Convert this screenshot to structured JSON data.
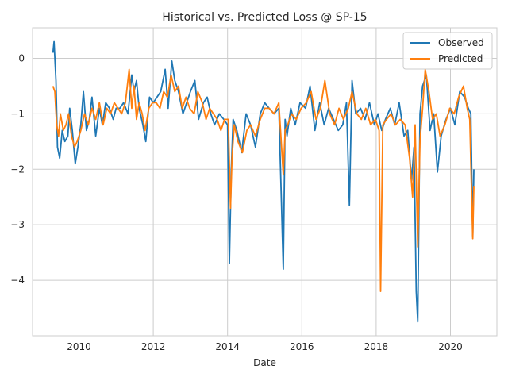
{
  "chart_data": {
    "type": "line",
    "title": "Historical vs. Predicted Loss @ SP-15",
    "xlabel": "Date",
    "ylabel": "",
    "xlim": [
      2008.75,
      2021.25
    ],
    "ylim": [
      -5.0,
      0.55
    ],
    "x_ticks": [
      2010,
      2012,
      2014,
      2016,
      2018,
      2020
    ],
    "x_tick_labels": [
      "2010",
      "2012",
      "2014",
      "2016",
      "2018",
      "2020"
    ],
    "y_ticks": [
      0,
      -1,
      -2,
      -3,
      -4
    ],
    "y_tick_labels": [
      "0",
      "−1",
      "−2",
      "−3",
      "−4"
    ],
    "grid": true,
    "legend_position": "top-right",
    "colors": {
      "Observed": "#1f77b4",
      "Predicted": "#ff7f0e"
    },
    "series": [
      {
        "name": "Observed",
        "x": [
          2009.3,
          2009.33,
          2009.38,
          2009.42,
          2009.48,
          2009.55,
          2009.62,
          2009.7,
          2009.75,
          2009.82,
          2009.9,
          2009.97,
          2010.05,
          2010.12,
          2010.2,
          2010.28,
          2010.35,
          2010.45,
          2010.55,
          2010.63,
          2010.72,
          2010.82,
          2010.92,
          2011.0,
          2011.1,
          2011.2,
          2011.32,
          2011.42,
          2011.48,
          2011.55,
          2011.62,
          2011.72,
          2011.8,
          2011.9,
          2012.0,
          2012.1,
          2012.2,
          2012.32,
          2012.4,
          2012.5,
          2012.58,
          2012.68,
          2012.8,
          2012.9,
          2013.0,
          2013.12,
          2013.22,
          2013.35,
          2013.45,
          2013.55,
          2013.65,
          2013.78,
          2013.9,
          2014.0,
          2014.05,
          2014.1,
          2014.15,
          2014.25,
          2014.38,
          2014.5,
          2014.62,
          2014.75,
          2014.88,
          2015.0,
          2015.12,
          2015.25,
          2015.38,
          2015.5,
          2015.55,
          2015.6,
          2015.7,
          2015.82,
          2015.95,
          2016.1,
          2016.22,
          2016.35,
          2016.48,
          2016.6,
          2016.72,
          2016.85,
          2016.98,
          2017.1,
          2017.2,
          2017.28,
          2017.35,
          2017.45,
          2017.58,
          2017.7,
          2017.82,
          2017.95,
          2018.05,
          2018.15,
          2018.25,
          2018.38,
          2018.5,
          2018.62,
          2018.75,
          2018.85,
          2018.95,
          2019.02,
          2019.08,
          2019.12,
          2019.18,
          2019.25,
          2019.35,
          2019.45,
          2019.55,
          2019.65,
          2019.75,
          2019.88,
          2020.0,
          2020.12,
          2020.25,
          2020.38,
          2020.48,
          2020.55,
          2020.6,
          2020.63
        ],
        "values": [
          0.1,
          0.3,
          -0.4,
          -1.6,
          -1.8,
          -1.3,
          -1.5,
          -1.4,
          -0.9,
          -1.3,
          -1.9,
          -1.6,
          -1.2,
          -0.6,
          -1.3,
          -1.1,
          -0.7,
          -1.4,
          -0.9,
          -1.2,
          -0.8,
          -0.9,
          -1.1,
          -0.9,
          -0.9,
          -0.8,
          -1.0,
          -0.3,
          -0.6,
          -0.4,
          -0.9,
          -1.2,
          -1.5,
          -0.7,
          -0.8,
          -0.7,
          -0.6,
          -0.2,
          -0.9,
          -0.05,
          -0.4,
          -0.6,
          -1.0,
          -0.8,
          -0.6,
          -0.4,
          -1.1,
          -0.8,
          -0.7,
          -1.0,
          -1.2,
          -1.0,
          -1.1,
          -1.2,
          -3.7,
          -2.0,
          -1.1,
          -1.3,
          -1.7,
          -1.0,
          -1.2,
          -1.6,
          -1.0,
          -0.8,
          -0.9,
          -1.0,
          -0.9,
          -3.8,
          -1.1,
          -1.4,
          -0.9,
          -1.2,
          -0.8,
          -0.9,
          -0.5,
          -1.3,
          -0.8,
          -1.2,
          -0.9,
          -1.1,
          -1.3,
          -1.2,
          -0.8,
          -2.65,
          -0.4,
          -1.0,
          -0.9,
          -1.1,
          -0.8,
          -1.2,
          -1.0,
          -1.3,
          -1.1,
          -0.9,
          -1.2,
          -0.8,
          -1.4,
          -1.3,
          -2.2,
          -1.6,
          -4.2,
          -4.75,
          -1.0,
          -0.5,
          -0.3,
          -1.3,
          -1.0,
          -2.05,
          -1.4,
          -1.1,
          -0.9,
          -1.2,
          -0.6,
          -0.7,
          -0.9,
          -1.0,
          -3.2,
          -2.0
        ]
      },
      {
        "name": "Predicted",
        "x": [
          2009.3,
          2009.35,
          2009.4,
          2009.45,
          2009.5,
          2009.58,
          2009.65,
          2009.72,
          2009.8,
          2009.88,
          2009.95,
          2010.05,
          2010.15,
          2010.25,
          2010.35,
          2010.45,
          2010.55,
          2010.65,
          2010.75,
          2010.85,
          2010.95,
          2011.05,
          2011.15,
          2011.25,
          2011.35,
          2011.42,
          2011.48,
          2011.55,
          2011.62,
          2011.7,
          2011.78,
          2011.88,
          2011.98,
          2012.08,
          2012.18,
          2012.28,
          2012.38,
          2012.48,
          2012.58,
          2012.68,
          2012.78,
          2012.88,
          2012.98,
          2013.1,
          2013.2,
          2013.32,
          2013.42,
          2013.52,
          2013.62,
          2013.72,
          2013.82,
          2013.92,
          2014.02,
          2014.08,
          2014.12,
          2014.18,
          2014.28,
          2014.4,
          2014.52,
          2014.62,
          2014.75,
          2014.88,
          2015.0,
          2015.12,
          2015.25,
          2015.38,
          2015.5,
          2015.55,
          2015.62,
          2015.72,
          2015.85,
          2015.98,
          2016.12,
          2016.25,
          2016.38,
          2016.5,
          2016.62,
          2016.75,
          2016.88,
          2017.0,
          2017.12,
          2017.25,
          2017.35,
          2017.48,
          2017.6,
          2017.72,
          2017.85,
          2017.98,
          2018.08,
          2018.12,
          2018.18,
          2018.28,
          2018.4,
          2018.52,
          2018.65,
          2018.78,
          2018.9,
          2018.98,
          2019.05,
          2019.12,
          2019.18,
          2019.25,
          2019.32,
          2019.42,
          2019.52,
          2019.62,
          2019.72,
          2019.85,
          2019.98,
          2020.1,
          2020.22,
          2020.35,
          2020.45,
          2020.52,
          2020.6,
          2020.63
        ],
        "values": [
          -0.5,
          -0.6,
          -1.2,
          -1.4,
          -1.0,
          -1.3,
          -1.2,
          -1.0,
          -1.4,
          -1.6,
          -1.5,
          -1.3,
          -1.0,
          -1.2,
          -0.9,
          -1.1,
          -0.8,
          -1.2,
          -0.9,
          -1.0,
          -0.8,
          -0.9,
          -1.0,
          -0.8,
          -0.2,
          -0.9,
          -0.5,
          -1.1,
          -0.8,
          -1.0,
          -1.3,
          -0.9,
          -0.8,
          -0.8,
          -0.9,
          -0.6,
          -0.7,
          -0.3,
          -0.6,
          -0.5,
          -0.9,
          -0.7,
          -0.9,
          -1.0,
          -0.6,
          -0.8,
          -1.1,
          -0.9,
          -1.0,
          -1.1,
          -1.3,
          -1.1,
          -1.1,
          -2.7,
          -1.8,
          -1.2,
          -1.5,
          -1.7,
          -1.3,
          -1.2,
          -1.4,
          -1.1,
          -0.9,
          -0.9,
          -1.0,
          -0.8,
          -2.1,
          -1.3,
          -1.2,
          -1.0,
          -1.1,
          -0.9,
          -0.8,
          -0.6,
          -1.1,
          -0.9,
          -0.4,
          -1.0,
          -1.2,
          -0.9,
          -1.1,
          -0.9,
          -0.6,
          -1.0,
          -1.1,
          -0.9,
          -1.2,
          -1.1,
          -1.3,
          -4.2,
          -1.2,
          -1.1,
          -1.0,
          -1.2,
          -1.1,
          -1.2,
          -1.8,
          -2.5,
          -1.2,
          -3.4,
          -1.5,
          -0.9,
          -0.2,
          -0.6,
          -1.1,
          -1.0,
          -1.4,
          -1.2,
          -0.9,
          -1.0,
          -0.7,
          -0.5,
          -0.9,
          -1.1,
          -3.25,
          -2.3
        ]
      }
    ]
  }
}
